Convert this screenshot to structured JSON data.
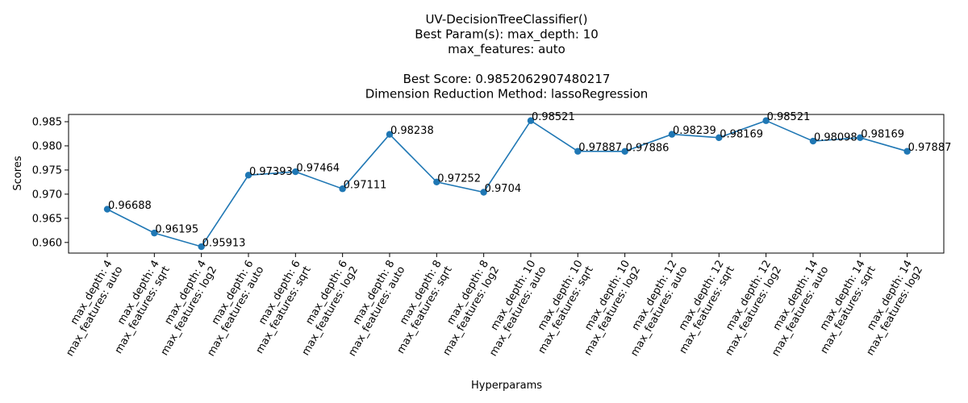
{
  "chart_data": {
    "type": "line",
    "title_lines": [
      "UV-DecisionTreeClassifier()",
      "Best Param(s): max_depth: 10",
      "max_features: auto",
      "",
      "Best Score: 0.9852062907480217",
      "Dimension Reduction Method: lassoRegression"
    ],
    "xlabel": "Hyperparams",
    "ylabel": "Scores",
    "ylim": [
      0.9578,
      0.9865
    ],
    "yticks": [
      "0.960",
      "0.965",
      "0.970",
      "0.975",
      "0.980",
      "0.985"
    ],
    "grid": false,
    "line_color": "#1f77b4",
    "categories": [
      [
        "max_depth: 4",
        "max_features: auto"
      ],
      [
        "max_depth: 4",
        "max_features: sqrt"
      ],
      [
        "max_depth: 4",
        "max_features: log2"
      ],
      [
        "max_depth: 6",
        "max_features: auto"
      ],
      [
        "max_depth: 6",
        "max_features: sqrt"
      ],
      [
        "max_depth: 6",
        "max_features: log2"
      ],
      [
        "max_depth: 8",
        "max_features: auto"
      ],
      [
        "max_depth: 8",
        "max_features: sqrt"
      ],
      [
        "max_depth: 8",
        "max_features: log2"
      ],
      [
        "max_depth: 10",
        "max_features: auto"
      ],
      [
        "max_depth: 10",
        "max_features: sqrt"
      ],
      [
        "max_depth: 10",
        "max_features: log2"
      ],
      [
        "max_depth: 12",
        "max_features: auto"
      ],
      [
        "max_depth: 12",
        "max_features: sqrt"
      ],
      [
        "max_depth: 12",
        "max_features: log2"
      ],
      [
        "max_depth: 14",
        "max_features: auto"
      ],
      [
        "max_depth: 14",
        "max_features: sqrt"
      ],
      [
        "max_depth: 14",
        "max_features: log2"
      ]
    ],
    "values": [
      0.96688,
      0.96195,
      0.95913,
      0.97393,
      0.97464,
      0.97111,
      0.98238,
      0.97252,
      0.9704,
      0.98521,
      0.97887,
      0.97886,
      0.98239,
      0.98169,
      0.98521,
      0.98098,
      0.98169,
      0.97887
    ],
    "value_labels": [
      "0.96688",
      "0.96195",
      "0.95913",
      "0.97393",
      "0.97464",
      "0.97111",
      "0.98238",
      "0.97252",
      "0.9704",
      "0.98521",
      "0.97887",
      "0.97886",
      "0.98239",
      "0.98169",
      "0.98521",
      "0.98098",
      "0.98169",
      "0.97887"
    ]
  }
}
